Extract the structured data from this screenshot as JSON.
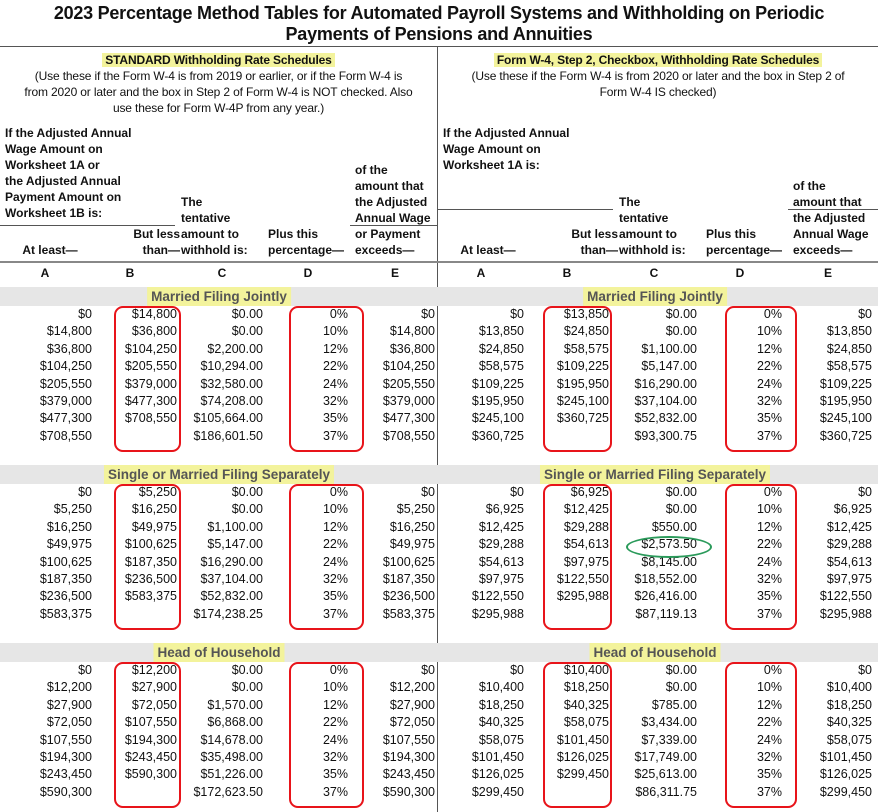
{
  "title_lines": [
    "2023 Percentage Method Tables for Automated Payroll Systems and Withholding on Periodic",
    "Payments of Pensions and Annuities"
  ],
  "left_header": {
    "heading": "STANDARD Withholding Rate Schedules",
    "lines": [
      "(Use these if the Form W-4 is from 2019 or earlier, or if the Form W-4 is",
      "from 2020 or later and the box in Step 2 of Form W-4 is NOT checked. Also",
      "use these for Form W-4P from any year.)"
    ]
  },
  "right_header": {
    "heading": "Form W-4, Step 2, Checkbox, Withholding Rate Schedules",
    "lines": [
      "(Use these if the Form W-4 is from 2020 or later and the box in Step 2 of",
      "Form W-4 IS checked)"
    ]
  },
  "left_columns": {
    "intro": [
      "If the Adjusted Annual",
      "Wage Amount on",
      "Worksheet 1A or",
      "the Adjusted Annual",
      "Payment Amount on",
      "Worksheet 1B is:"
    ],
    "a": [
      "At least—"
    ],
    "b": [
      "But less",
      "than—"
    ],
    "c": [
      "The",
      "tentative",
      "amount to",
      "withhold is:"
    ],
    "d": [
      "Plus this",
      "percentage—"
    ],
    "e": [
      "of the",
      "amount that",
      "the Adjusted",
      "Annual Wage",
      "or Payment",
      "exceeds—"
    ]
  },
  "right_columns": {
    "intro": [
      "If the Adjusted Annual",
      "Wage Amount on",
      "Worksheet 1A is:"
    ],
    "a": [
      "At least—"
    ],
    "b": [
      "But less",
      "than—"
    ],
    "c": [
      "The",
      "tentative",
      "amount to",
      "withhold is:"
    ],
    "d": [
      "Plus this",
      "percentage—"
    ],
    "e": [
      "of the",
      "amount that",
      "the Adjusted",
      "Annual Wage",
      "exceeds—"
    ]
  },
  "column_letters": [
    "A",
    "B",
    "C",
    "D",
    "E"
  ],
  "sections": [
    {
      "title": "Married Filing Jointly",
      "left": [
        [
          "$0",
          "$14,800",
          "$0.00",
          "0%",
          "$0"
        ],
        [
          "$14,800",
          "$36,800",
          "$0.00",
          "10%",
          "$14,800"
        ],
        [
          "$36,800",
          "$104,250",
          "$2,200.00",
          "12%",
          "$36,800"
        ],
        [
          "$104,250",
          "$205,550",
          "$10,294.00",
          "22%",
          "$104,250"
        ],
        [
          "$205,550",
          "$379,000",
          "$32,580.00",
          "24%",
          "$205,550"
        ],
        [
          "$379,000",
          "$477,300",
          "$74,208.00",
          "32%",
          "$379,000"
        ],
        [
          "$477,300",
          "$708,550",
          "$105,664.00",
          "35%",
          "$477,300"
        ],
        [
          "$708,550",
          "",
          "$186,601.50",
          "37%",
          "$708,550"
        ]
      ],
      "right": [
        [
          "$0",
          "$13,850",
          "$0.00",
          "0%",
          "$0"
        ],
        [
          "$13,850",
          "$24,850",
          "$0.00",
          "10%",
          "$13,850"
        ],
        [
          "$24,850",
          "$58,575",
          "$1,100.00",
          "12%",
          "$24,850"
        ],
        [
          "$58,575",
          "$109,225",
          "$5,147.00",
          "22%",
          "$58,575"
        ],
        [
          "$109,225",
          "$195,950",
          "$16,290.00",
          "24%",
          "$109,225"
        ],
        [
          "$195,950",
          "$245,100",
          "$37,104.00",
          "32%",
          "$195,950"
        ],
        [
          "$245,100",
          "$360,725",
          "$52,832.00",
          "35%",
          "$245,100"
        ],
        [
          "$360,725",
          "",
          "$93,300.75",
          "37%",
          "$360,725"
        ]
      ]
    },
    {
      "title": "Single or Married Filing Separately",
      "left": [
        [
          "$0",
          "$5,250",
          "$0.00",
          "0%",
          "$0"
        ],
        [
          "$5,250",
          "$16,250",
          "$0.00",
          "10%",
          "$5,250"
        ],
        [
          "$16,250",
          "$49,975",
          "$1,100.00",
          "12%",
          "$16,250"
        ],
        [
          "$49,975",
          "$100,625",
          "$5,147.00",
          "22%",
          "$49,975"
        ],
        [
          "$100,625",
          "$187,350",
          "$16,290.00",
          "24%",
          "$100,625"
        ],
        [
          "$187,350",
          "$236,500",
          "$37,104.00",
          "32%",
          "$187,350"
        ],
        [
          "$236,500",
          "$583,375",
          "$52,832.00",
          "35%",
          "$236,500"
        ],
        [
          "$583,375",
          "",
          "$174,238.25",
          "37%",
          "$583,375"
        ]
      ],
      "right": [
        [
          "$0",
          "$6,925",
          "$0.00",
          "0%",
          "$0"
        ],
        [
          "$6,925",
          "$12,425",
          "$0.00",
          "10%",
          "$6,925"
        ],
        [
          "$12,425",
          "$29,288",
          "$550.00",
          "12%",
          "$12,425"
        ],
        [
          "$29,288",
          "$54,613",
          "$2,573.50",
          "22%",
          "$29,288"
        ],
        [
          "$54,613",
          "$97,975",
          "$8,145.00",
          "24%",
          "$54,613"
        ],
        [
          "$97,975",
          "$122,550",
          "$18,552.00",
          "32%",
          "$97,975"
        ],
        [
          "$122,550",
          "$295,988",
          "$26,416.00",
          "35%",
          "$122,550"
        ],
        [
          "$295,988",
          "",
          "$87,119.13",
          "37%",
          "$295,988"
        ]
      ]
    },
    {
      "title": "Head of Household",
      "left": [
        [
          "$0",
          "$12,200",
          "$0.00",
          "0%",
          "$0"
        ],
        [
          "$12,200",
          "$27,900",
          "$0.00",
          "10%",
          "$12,200"
        ],
        [
          "$27,900",
          "$72,050",
          "$1,570.00",
          "12%",
          "$27,900"
        ],
        [
          "$72,050",
          "$107,550",
          "$6,868.00",
          "22%",
          "$72,050"
        ],
        [
          "$107,550",
          "$194,300",
          "$14,678.00",
          "24%",
          "$107,550"
        ],
        [
          "$194,300",
          "$243,450",
          "$35,498.00",
          "32%",
          "$194,300"
        ],
        [
          "$243,450",
          "$590,300",
          "$51,226.00",
          "35%",
          "$243,450"
        ],
        [
          "$590,300",
          "",
          "$172,623.50",
          "37%",
          "$590,300"
        ]
      ],
      "right": [
        [
          "$0",
          "$10,400",
          "$0.00",
          "0%",
          "$0"
        ],
        [
          "$10,400",
          "$18,250",
          "$0.00",
          "10%",
          "$10,400"
        ],
        [
          "$18,250",
          "$40,325",
          "$785.00",
          "12%",
          "$18,250"
        ],
        [
          "$40,325",
          "$58,075",
          "$3,434.00",
          "22%",
          "$40,325"
        ],
        [
          "$58,075",
          "$101,450",
          "$7,339.00",
          "24%",
          "$58,075"
        ],
        [
          "$101,450",
          "$126,025",
          "$17,749.00",
          "32%",
          "$101,450"
        ],
        [
          "$126,025",
          "$299,450",
          "$25,613.00",
          "35%",
          "$126,025"
        ],
        [
          "$299,450",
          "",
          "$86,311.75",
          "37%",
          "$299,450"
        ]
      ]
    }
  ],
  "annotations": {
    "red_box_color": "#e8141a",
    "green_circle_color": "#2a9a5a",
    "highlight_color": "#f3f39c"
  }
}
